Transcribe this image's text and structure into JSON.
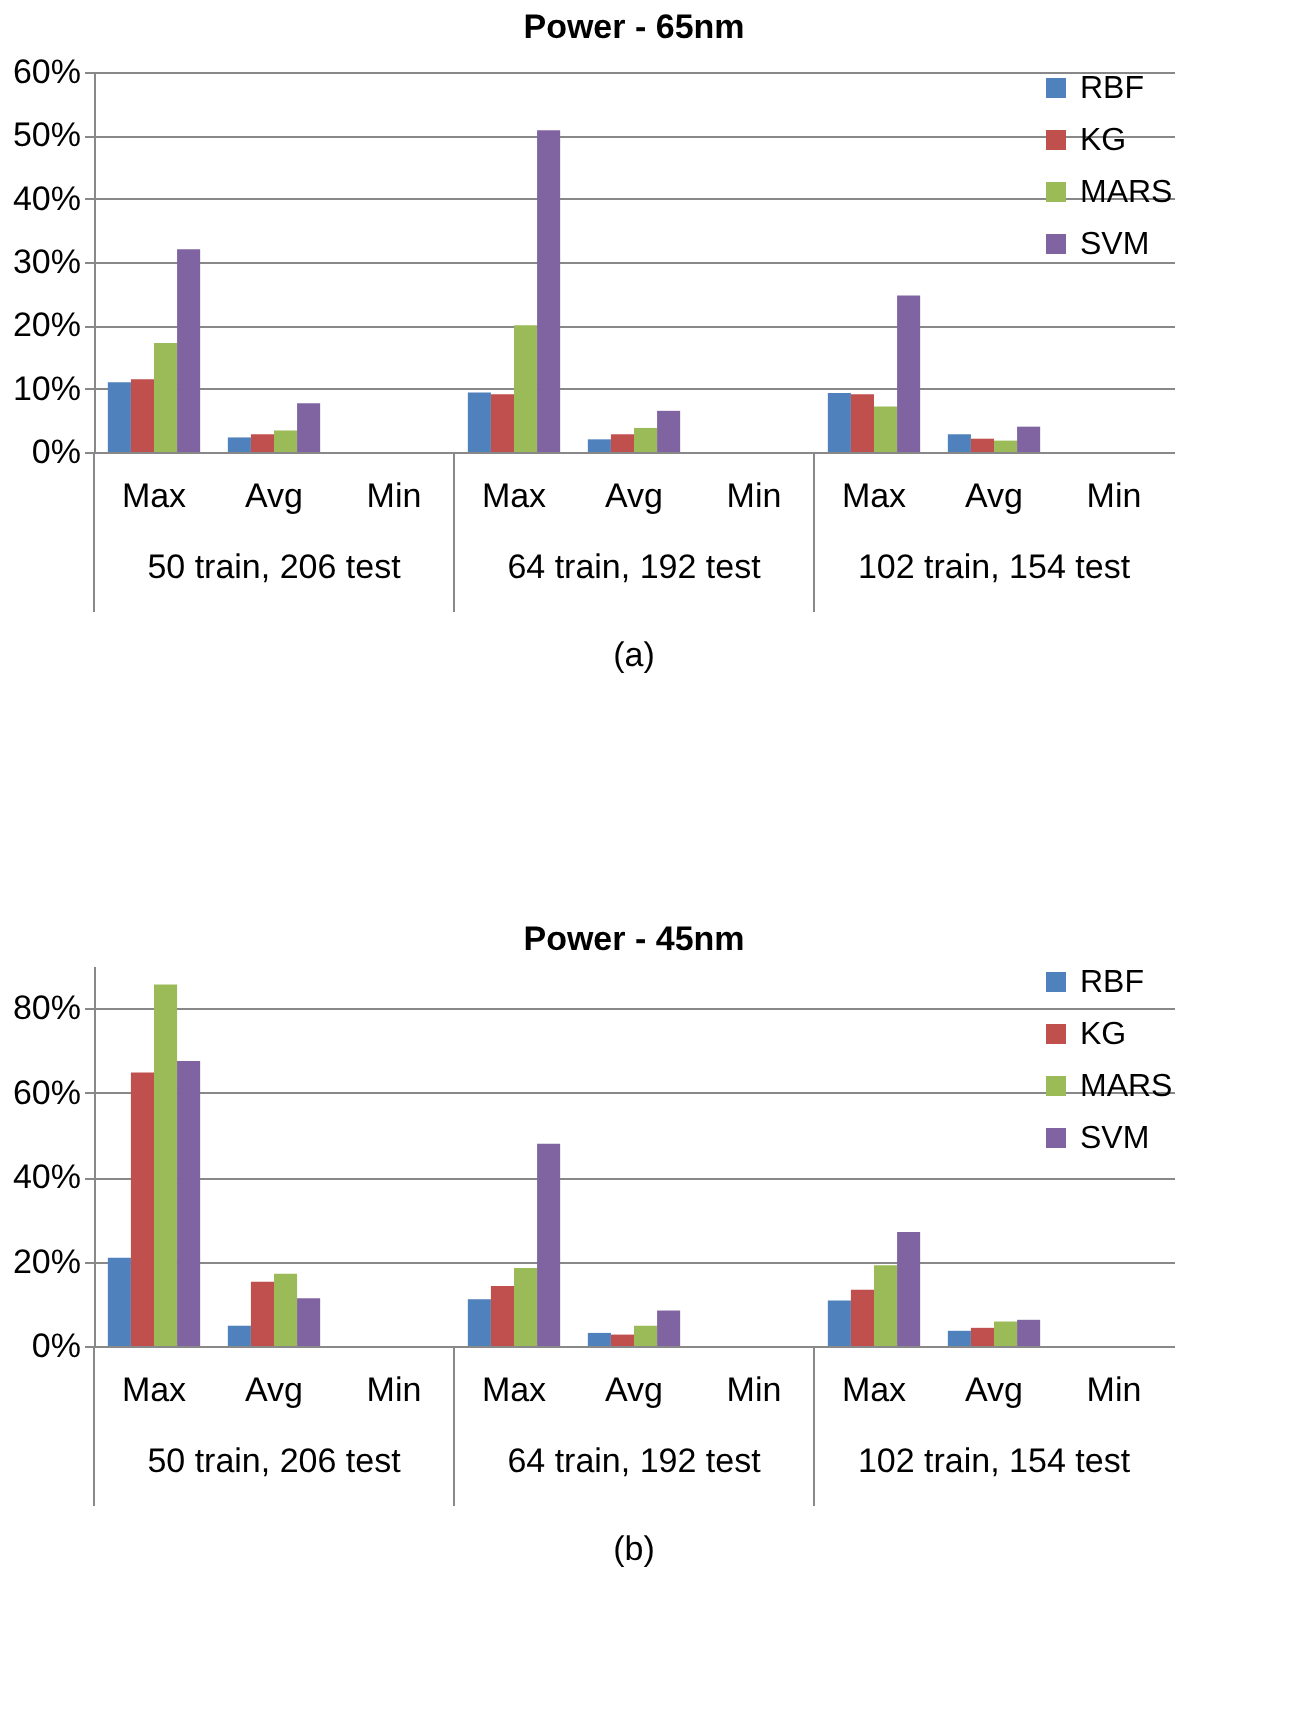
{
  "chart_data": [
    {
      "type": "bar",
      "title": "Power - 65nm",
      "categories": [
        "Max",
        "Avg",
        "Min",
        "Max",
        "Avg",
        "Min",
        "Max",
        "Avg",
        "Min"
      ],
      "series": [
        {
          "name": "RBF",
          "color": "#4f81bd",
          "values": [
            11.0,
            2.3,
            0,
            9.4,
            2.0,
            0,
            9.3,
            2.8,
            0
          ]
        },
        {
          "name": "KG",
          "color": "#c0504d",
          "values": [
            11.5,
            2.8,
            0,
            9.1,
            2.8,
            0,
            9.1,
            2.1,
            0
          ]
        },
        {
          "name": "MARS",
          "color": "#9bbb59",
          "values": [
            17.2,
            3.4,
            0,
            20.0,
            3.8,
            0,
            7.2,
            1.8,
            0
          ]
        },
        {
          "name": "SVM",
          "color": "#8064a2",
          "values": [
            32.0,
            7.7,
            0,
            50.8,
            6.5,
            0,
            24.7,
            4.0,
            0
          ]
        }
      ],
      "ylim": [
        0,
        60
      ],
      "yticks": [
        {
          "value": 0,
          "label": "0%"
        },
        {
          "value": 10,
          "label": "10%"
        },
        {
          "value": 20,
          "label": "20%"
        },
        {
          "value": 30,
          "label": "30%"
        },
        {
          "value": 40,
          "label": "40%"
        },
        {
          "value": 50,
          "label": "50%"
        },
        {
          "value": 60,
          "label": "60%"
        }
      ],
      "grid": "y",
      "legend": "top right",
      "annotations": [
        "50 train, 206 test",
        "64 train, 192 test",
        "102 train, 154 test",
        "(a)"
      ]
    },
    {
      "type": "bar",
      "title": "Power - 45nm",
      "categories": [
        "Max",
        "Avg",
        "Min",
        "Max",
        "Avg",
        "Min",
        "Max",
        "Avg",
        "Min"
      ],
      "series": [
        {
          "name": "RBF",
          "color": "#4f81bd",
          "values": [
            20.9,
            4.8,
            0,
            11.1,
            3.1,
            0,
            10.8,
            3.6,
            0
          ]
        },
        {
          "name": "KG",
          "color": "#c0504d",
          "values": [
            64.8,
            15.2,
            0,
            14.2,
            2.7,
            0,
            13.3,
            4.3,
            0
          ]
        },
        {
          "name": "MARS",
          "color": "#9bbb59",
          "values": [
            85.6,
            17.1,
            0,
            18.5,
            4.8,
            0,
            19.1,
            5.8,
            0
          ]
        },
        {
          "name": "SVM",
          "color": "#8064a2",
          "values": [
            67.5,
            11.3,
            0,
            47.9,
            8.4,
            0,
            27.0,
            6.2,
            0
          ]
        }
      ],
      "ylim": [
        0,
        90
      ],
      "yticks": [
        {
          "value": 0,
          "label": "0%"
        },
        {
          "value": 20,
          "label": "20%"
        },
        {
          "value": 40,
          "label": "40%"
        },
        {
          "value": 60,
          "label": "60%"
        },
        {
          "value": 80,
          "label": "80%"
        }
      ],
      "grid": "y",
      "legend": "top right",
      "annotations": [
        "50 train, 206 test",
        "64 train, 192 test",
        "102 train, 154 test",
        "(b)"
      ]
    }
  ]
}
